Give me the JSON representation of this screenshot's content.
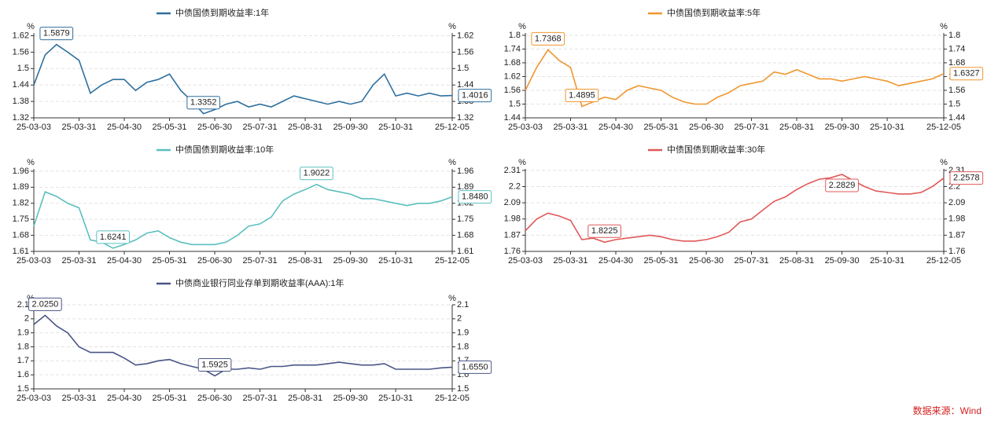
{
  "chart_data": [
    {
      "type": "line",
      "title": null,
      "y_unit": "%",
      "mirror_y": true,
      "grid": true,
      "categories": [
        "25-03-03",
        null,
        null,
        null,
        "25-03-31",
        null,
        null,
        null,
        "25-04-30",
        null,
        null,
        null,
        "25-05-31",
        null,
        null,
        null,
        "25-06-30",
        null,
        null,
        null,
        "25-07-31",
        null,
        null,
        null,
        "25-08-31",
        null,
        null,
        null,
        "25-09-30",
        null,
        null,
        null,
        "25-10-31",
        null,
        null,
        null,
        null,
        "25-12-05"
      ],
      "ylim": [
        1.32,
        1.63
      ],
      "yticks": [
        1.32,
        1.38,
        1.44,
        1.5,
        1.56,
        1.62
      ],
      "series": [
        {
          "name": "中债国债到期收益率:1年",
          "color": "#2e6f9e",
          "values": [
            1.44,
            1.55,
            1.5879,
            1.56,
            1.53,
            1.41,
            1.44,
            1.46,
            1.46,
            1.42,
            1.45,
            1.46,
            1.48,
            1.42,
            1.38,
            1.3352,
            1.35,
            1.37,
            1.38,
            1.36,
            1.37,
            1.36,
            1.38,
            1.4,
            1.39,
            1.38,
            1.37,
            1.38,
            1.37,
            1.38,
            1.44,
            1.48,
            1.4,
            1.41,
            1.4,
            1.41,
            1.4,
            1.4016
          ],
          "value_labels": [
            null,
            null,
            "1.5879",
            null,
            null,
            null,
            null,
            null,
            null,
            null,
            null,
            null,
            null,
            null,
            null,
            "1.3352",
            null,
            null,
            null,
            null,
            null,
            null,
            null,
            null,
            null,
            null,
            null,
            null,
            null,
            null,
            null,
            null,
            null,
            null,
            null,
            null,
            null,
            "1.4016"
          ]
        }
      ]
    },
    {
      "type": "line",
      "title": null,
      "y_unit": "%",
      "mirror_y": true,
      "grid": true,
      "categories": [
        "25-03-03",
        null,
        null,
        null,
        "25-03-31",
        null,
        null,
        null,
        "25-04-30",
        null,
        null,
        null,
        "25-05-31",
        null,
        null,
        null,
        "25-06-30",
        null,
        null,
        null,
        "25-07-31",
        null,
        null,
        null,
        "25-08-31",
        null,
        null,
        null,
        "25-09-30",
        null,
        null,
        null,
        "25-10-31",
        null,
        null,
        null,
        null,
        "25-12-05"
      ],
      "ylim": [
        1.44,
        1.81
      ],
      "yticks": [
        1.44,
        1.5,
        1.56,
        1.62,
        1.68,
        1.74,
        1.8
      ],
      "series": [
        {
          "name": "中债国债到期收益率:5年",
          "color": "#f0962d",
          "values": [
            1.56,
            1.66,
            1.7368,
            1.69,
            1.66,
            1.4895,
            1.51,
            1.53,
            1.52,
            1.56,
            1.58,
            1.57,
            1.56,
            1.53,
            1.51,
            1.5,
            1.5,
            1.53,
            1.55,
            1.58,
            1.59,
            1.6,
            1.64,
            1.63,
            1.65,
            1.63,
            1.61,
            1.61,
            1.6,
            1.61,
            1.62,
            1.61,
            1.6,
            1.58,
            1.59,
            1.6,
            1.61,
            1.6327
          ],
          "value_labels": [
            null,
            null,
            "1.7368",
            null,
            null,
            "1.4895",
            null,
            null,
            null,
            null,
            null,
            null,
            null,
            null,
            null,
            null,
            null,
            null,
            null,
            null,
            null,
            null,
            null,
            null,
            null,
            null,
            null,
            null,
            null,
            null,
            null,
            null,
            null,
            null,
            null,
            null,
            null,
            "1.6327"
          ]
        }
      ]
    },
    {
      "type": "line",
      "title": null,
      "y_unit": "%",
      "mirror_y": true,
      "grid": true,
      "categories": [
        "25-03-03",
        null,
        null,
        null,
        "25-03-31",
        null,
        null,
        null,
        "25-04-30",
        null,
        null,
        null,
        "25-05-31",
        null,
        null,
        null,
        "25-06-30",
        null,
        null,
        null,
        "25-07-31",
        null,
        null,
        null,
        "25-08-31",
        null,
        null,
        null,
        "25-09-30",
        null,
        null,
        null,
        "25-10-31",
        null,
        null,
        null,
        null,
        "25-12-05"
      ],
      "ylim": [
        1.61,
        1.97
      ],
      "yticks": [
        1.61,
        1.68,
        1.75,
        1.82,
        1.89,
        1.96
      ],
      "series": [
        {
          "name": "中债国债到期收益率:10年",
          "color": "#5cbfbf",
          "values": [
            1.72,
            1.87,
            1.85,
            1.82,
            1.8,
            1.66,
            1.65,
            1.6241,
            1.64,
            1.66,
            1.69,
            1.7,
            1.67,
            1.65,
            1.64,
            1.64,
            1.64,
            1.65,
            1.68,
            1.72,
            1.73,
            1.76,
            1.83,
            1.86,
            1.88,
            1.9022,
            1.88,
            1.87,
            1.86,
            1.84,
            1.84,
            1.83,
            1.82,
            1.81,
            1.82,
            1.82,
            1.83,
            1.848
          ],
          "value_labels": [
            null,
            null,
            null,
            null,
            null,
            null,
            null,
            "1.6241",
            null,
            null,
            null,
            null,
            null,
            null,
            null,
            null,
            null,
            null,
            null,
            null,
            null,
            null,
            null,
            null,
            null,
            "1.9022",
            null,
            null,
            null,
            null,
            null,
            null,
            null,
            null,
            null,
            null,
            null,
            "1.8480"
          ]
        }
      ]
    },
    {
      "type": "line",
      "title": null,
      "y_unit": "%",
      "mirror_y": true,
      "grid": true,
      "categories": [
        "25-03-03",
        null,
        null,
        null,
        "25-03-31",
        null,
        null,
        null,
        "25-04-30",
        null,
        null,
        null,
        "25-05-31",
        null,
        null,
        null,
        "25-06-30",
        null,
        null,
        null,
        "25-07-31",
        null,
        null,
        null,
        "25-08-31",
        null,
        null,
        null,
        "25-09-30",
        null,
        null,
        null,
        "25-10-31",
        null,
        null,
        null,
        null,
        "25-12-05"
      ],
      "ylim": [
        1.76,
        2.32
      ],
      "yticks": [
        1.76,
        1.87,
        1.98,
        2.09,
        2.2,
        2.31
      ],
      "series": [
        {
          "name": "中债国债到期收益率:30年",
          "color": "#e05858",
          "values": [
            1.9,
            1.98,
            2.02,
            2.0,
            1.97,
            1.84,
            1.85,
            1.8225,
            1.84,
            1.85,
            1.86,
            1.87,
            1.86,
            1.84,
            1.83,
            1.83,
            1.84,
            1.86,
            1.89,
            1.96,
            1.98,
            2.04,
            2.1,
            2.13,
            2.18,
            2.22,
            2.25,
            2.26,
            2.2829,
            2.24,
            2.2,
            2.17,
            2.16,
            2.15,
            2.15,
            2.16,
            2.2,
            2.2578
          ],
          "value_labels": [
            null,
            null,
            null,
            null,
            null,
            null,
            null,
            "1.8225",
            null,
            null,
            null,
            null,
            null,
            null,
            null,
            null,
            null,
            null,
            null,
            null,
            null,
            null,
            null,
            null,
            null,
            null,
            null,
            null,
            "2.2829",
            null,
            null,
            null,
            null,
            null,
            null,
            null,
            null,
            "2.2578"
          ]
        }
      ]
    },
    {
      "type": "line",
      "title": null,
      "y_unit": "%",
      "mirror_y": true,
      "grid": true,
      "categories": [
        "25-03-03",
        null,
        null,
        null,
        "25-03-31",
        null,
        null,
        null,
        "25-04-30",
        null,
        null,
        null,
        "25-05-31",
        null,
        null,
        null,
        "25-06-30",
        null,
        null,
        null,
        "25-07-31",
        null,
        null,
        null,
        "25-08-31",
        null,
        null,
        null,
        "25-09-30",
        null,
        null,
        null,
        "25-10-31",
        null,
        null,
        null,
        null,
        "25-12-05"
      ],
      "ylim": [
        1.5,
        2.1
      ],
      "yticks": [
        1.5,
        1.6,
        1.7,
        1.8,
        1.9,
        2,
        2.1
      ],
      "series": [
        {
          "name": "中债商业银行同业存单到期收益率(AAA):1年",
          "color": "#4a5586",
          "values": [
            1.96,
            2.025,
            1.95,
            1.9,
            1.8,
            1.76,
            1.76,
            1.76,
            1.72,
            1.67,
            1.68,
            1.7,
            1.71,
            1.68,
            1.66,
            1.64,
            1.5925,
            1.64,
            1.64,
            1.65,
            1.64,
            1.66,
            1.66,
            1.67,
            1.67,
            1.67,
            1.68,
            1.69,
            1.68,
            1.67,
            1.67,
            1.68,
            1.64,
            1.64,
            1.64,
            1.64,
            1.65,
            1.655
          ],
          "value_labels": [
            null,
            "2.0250",
            null,
            null,
            null,
            null,
            null,
            null,
            null,
            null,
            null,
            null,
            null,
            null,
            null,
            null,
            "1.5925",
            null,
            null,
            null,
            null,
            null,
            null,
            null,
            null,
            null,
            null,
            null,
            null,
            null,
            null,
            null,
            null,
            null,
            null,
            null,
            null,
            "1.6550"
          ]
        }
      ]
    }
  ],
  "source": "数据来源：Wind"
}
